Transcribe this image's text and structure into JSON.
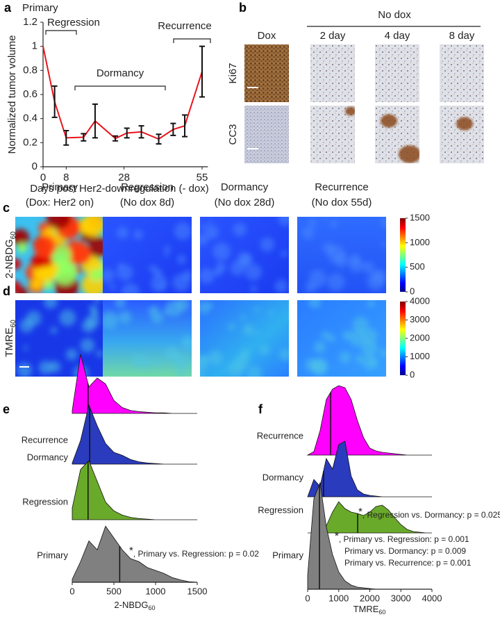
{
  "panel_labels": [
    "a",
    "b",
    "c",
    "d",
    "e",
    "f"
  ],
  "micrographs": {
    "group_label": "No dox",
    "columns": [
      "Dox",
      "2 day",
      "4 day",
      "8 day"
    ],
    "rows": [
      "Ki67",
      "CC3"
    ]
  },
  "heatmaps": {
    "columns": [
      [
        "Primary",
        "(Dox: Her2 on)"
      ],
      [
        "Regression",
        "(No dox 8d)"
      ],
      [
        "Dormancy",
        "(No dox 28d)"
      ],
      [
        "Recurrence",
        "(No dox 55d)"
      ]
    ],
    "rows": [
      {
        "label": "2-NBDG",
        "sub": "60",
        "colorbar_lim": [
          0,
          1500
        ],
        "colorbar_ticks": [
          0,
          500,
          1000,
          1500
        ]
      },
      {
        "label": "TMRE",
        "sub": "60",
        "colorbar_lim": [
          0,
          4000
        ],
        "colorbar_ticks": [
          0,
          1000,
          2000,
          3000,
          4000
        ]
      }
    ]
  },
  "chart_data": [
    {
      "type": "line",
      "title": "Primary",
      "xlabel": "Days post Her2-downregulation (- dox)",
      "ylabel": "Normalized tumor volume",
      "x": [
        0,
        4,
        8,
        14,
        18,
        25,
        29,
        34,
        40,
        45,
        49,
        55
      ],
      "values": [
        1.0,
        0.54,
        0.24,
        0.245,
        0.38,
        0.235,
        0.28,
        0.29,
        0.23,
        0.31,
        0.34,
        0.79
      ],
      "errors": [
        null,
        0.13,
        0.06,
        0.03,
        0.14,
        0.02,
        0.04,
        0.05,
        0.04,
        0.05,
        0.09,
        0.21
      ],
      "color": "#e8141c",
      "xlim": [
        0,
        57
      ],
      "xticks": [
        0,
        8,
        28,
        55
      ],
      "ylim": [
        0,
        1.2
      ],
      "yticks": [
        0,
        0.2,
        0.4,
        0.6,
        0.8,
        1,
        1.2
      ],
      "annotations": [
        {
          "text": "Regression"
        },
        {
          "text": "Dormancy"
        },
        {
          "text": "Recurrence"
        }
      ]
    },
    {
      "type": "ridgeline",
      "xlabel": "2-NBDG",
      "xlabel_sub": "60",
      "x": [
        0,
        100,
        200,
        300,
        400,
        500,
        600,
        700,
        800,
        900,
        1000,
        1100,
        1200,
        1300,
        1400,
        1500
      ],
      "xlim": [
        0,
        1500
      ],
      "xticks": [
        0,
        500,
        1000,
        1500
      ],
      "series": [
        {
          "name": "Recurrence",
          "color": "#ff00ff",
          "median": 190,
          "values": [
            0.05,
            1.0,
            0.45,
            0.6,
            0.5,
            0.22,
            0.1,
            0.05,
            0.03,
            0.02,
            0.01,
            0.01,
            0,
            0,
            0,
            0
          ]
        },
        {
          "name": "Dormancy",
          "color": "#2a3bbd",
          "median": 210,
          "values": [
            0.02,
            0.4,
            1.0,
            0.65,
            0.35,
            0.2,
            0.15,
            0.08,
            0.04,
            0.02,
            0.01,
            0,
            0,
            0,
            0,
            0
          ]
        },
        {
          "name": "Regression",
          "color": "#6aaa2a",
          "median": 190,
          "values": [
            0.2,
            0.85,
            1.0,
            0.65,
            0.3,
            0.15,
            0.08,
            0.04,
            0.02,
            0.01,
            0,
            0,
            0,
            0,
            0,
            0
          ]
        },
        {
          "name": "Primary",
          "color": "#808080",
          "median": 570,
          "values": [
            0.05,
            0.35,
            0.7,
            0.55,
            0.95,
            0.75,
            0.55,
            0.4,
            0.35,
            0.25,
            0.2,
            0.15,
            0.08,
            0.04,
            0.01,
            0
          ]
        }
      ],
      "annotations": [
        {
          "star": "*",
          "text": ", Primary vs. Regression: p = 0.02"
        }
      ]
    },
    {
      "type": "ridgeline",
      "xlabel": "TMRE",
      "xlabel_sub": "60",
      "x": [
        0,
        200,
        400,
        600,
        800,
        1000,
        1200,
        1400,
        1600,
        1800,
        2000,
        2200,
        2400,
        2600,
        2800,
        3000,
        3200,
        3400,
        3600,
        3800,
        4000
      ],
      "xlim": [
        0,
        4000
      ],
      "xticks": [
        0,
        1000,
        2000,
        3000,
        4000
      ],
      "series": [
        {
          "name": "Recurrence",
          "color": "#ff00ff",
          "median": 740,
          "values": [
            0,
            0.05,
            0.35,
            0.8,
            0.95,
            1.0,
            0.97,
            0.8,
            0.5,
            0.25,
            0.1,
            0.06,
            0.04,
            0.03,
            0.02,
            0.01,
            0,
            0,
            0,
            0,
            0
          ]
        },
        {
          "name": "Dormancy",
          "color": "#2a3bbd",
          "median": 510,
          "values": [
            0,
            0.25,
            0.15,
            0.55,
            0.4,
            0.75,
            0.8,
            0.3,
            0.1,
            0.04,
            0.02,
            0.01,
            0,
            0,
            0,
            0,
            0,
            0,
            0,
            0,
            0
          ]
        },
        {
          "name": "Regression",
          "color": "#6aaa2a",
          "median": 1610,
          "values": [
            0,
            0,
            0.02,
            0.1,
            0.3,
            0.45,
            0.35,
            0.3,
            0.28,
            0.25,
            0.3,
            0.38,
            0.4,
            0.33,
            0.22,
            0.12,
            0.05,
            0.02,
            0.01,
            0,
            0
          ]
        },
        {
          "name": "Primary",
          "color": "#808080",
          "median": 380,
          "values": [
            0.2,
            1.3,
            1.53,
            0.9,
            0.5,
            0.25,
            0.12,
            0.06,
            0.03,
            0.02,
            0.01,
            0,
            0,
            0,
            0,
            0,
            0,
            0,
            0,
            0,
            0
          ]
        }
      ],
      "annotations": [
        {
          "star": "*",
          "text": ", Regression vs. Dormancy:  p = 0.025"
        },
        {
          "star": "*",
          "text": ", Primary vs. Regression: p = 0.001"
        },
        {
          "text": "Primary vs. Dormancy:  p = 0.009"
        },
        {
          "text": "Primary vs. Recurrence: p = 0.001"
        }
      ]
    }
  ]
}
